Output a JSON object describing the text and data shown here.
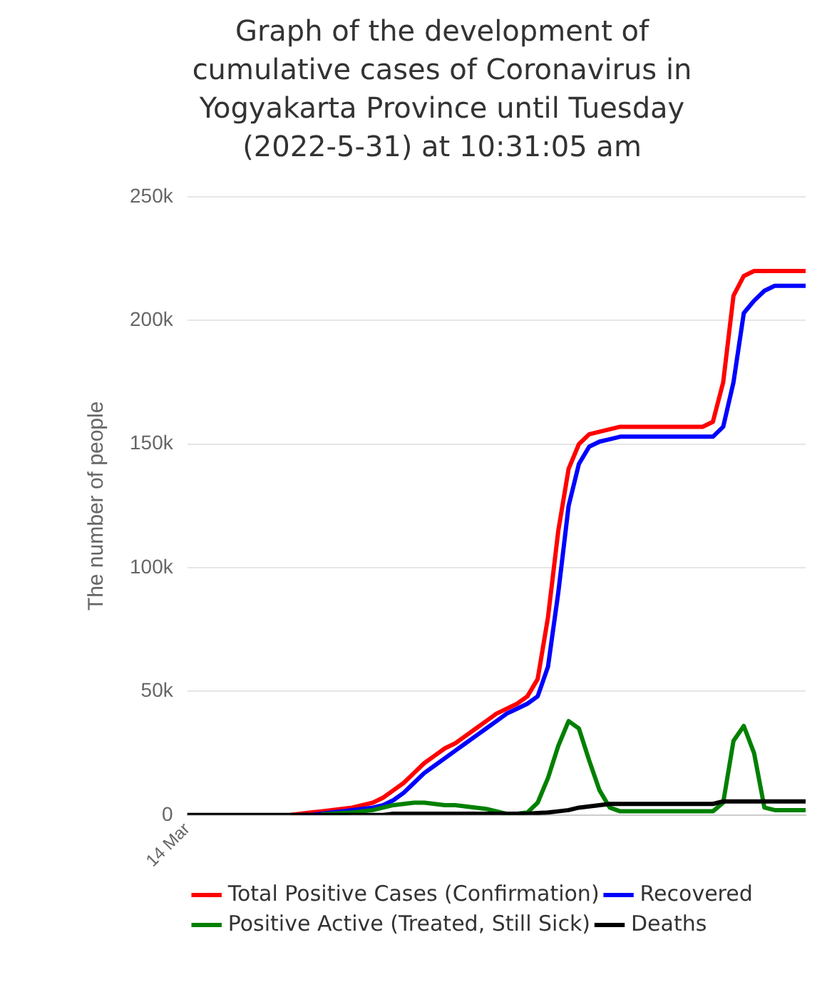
{
  "chart_data": {
    "type": "line",
    "title": "Graph of the development of cumulative cases of Coronavirus in Yogyakarta Province until Tuesday (2022-5-31) at 10:31:05 am",
    "ylabel": "The number of people",
    "categories": [
      "14 Mar",
      null,
      null,
      null,
      null,
      null,
      null,
      null,
      null,
      null,
      null,
      null,
      null,
      null,
      null,
      null,
      null,
      null,
      null,
      null,
      null,
      null,
      null,
      null,
      null,
      null,
      null,
      null,
      null,
      null,
      null,
      null,
      null,
      null,
      null,
      null,
      null,
      null,
      null,
      null,
      null,
      null,
      null,
      null,
      null,
      null,
      null,
      null,
      null,
      null,
      null,
      null,
      null,
      null,
      null,
      null,
      null,
      null,
      null,
      null,
      null
    ],
    "ylim": [
      0,
      250000
    ],
    "yticks": [
      {
        "value": 0,
        "label": "0"
      },
      {
        "value": 50000,
        "label": "50k"
      },
      {
        "value": 100000,
        "label": "100k"
      },
      {
        "value": 150000,
        "label": "150k"
      },
      {
        "value": 200000,
        "label": "200k"
      },
      {
        "value": 250000,
        "label": "250k"
      }
    ],
    "grid": "y",
    "legend": "bottom",
    "marker": "none",
    "series": [
      {
        "name": "Total Positive Cases (Confirmation)",
        "color": "#ff0000",
        "values": [
          null,
          null,
          null,
          null,
          null,
          null,
          null,
          null,
          null,
          null,
          0,
          500,
          1000,
          1500,
          2000,
          2500,
          3000,
          4000,
          5000,
          7000,
          10000,
          13000,
          17000,
          21000,
          24000,
          27000,
          29000,
          32000,
          35000,
          38000,
          41000,
          43000,
          45000,
          48000,
          55000,
          80000,
          115000,
          140000,
          150000,
          154000,
          155000,
          156000,
          157000,
          157000,
          157000,
          157000,
          157000,
          157000,
          157000,
          157000,
          157000,
          159000,
          175000,
          210000,
          218000,
          220000,
          220000,
          220000,
          220000,
          220000,
          220000
        ]
      },
      {
        "name": "Recovered",
        "color": "#0000ff",
        "values": [
          null,
          null,
          null,
          null,
          null,
          null,
          null,
          null,
          null,
          null,
          null,
          0,
          0,
          500,
          1000,
          1500,
          2000,
          2500,
          3000,
          4000,
          6000,
          9000,
          13000,
          17000,
          20000,
          23000,
          26000,
          29000,
          32000,
          35000,
          38000,
          41000,
          43000,
          45000,
          48000,
          60000,
          90000,
          125000,
          142000,
          149000,
          151000,
          152000,
          153000,
          153000,
          153000,
          153000,
          153000,
          153000,
          153000,
          153000,
          153000,
          153000,
          157000,
          175000,
          203000,
          208000,
          212000,
          214000,
          214000,
          214000,
          214000
        ]
      },
      {
        "name": "Positive Active (Treated, Still Sick)",
        "color": "#008000",
        "values": [
          null,
          null,
          null,
          null,
          null,
          null,
          null,
          null,
          null,
          null,
          null,
          null,
          null,
          300,
          500,
          800,
          1000,
          1500,
          2000,
          3000,
          4000,
          4500,
          5000,
          5000,
          4500,
          4000,
          4000,
          3500,
          3000,
          2500,
          1500,
          500,
          500,
          1000,
          5000,
          15000,
          28000,
          38000,
          35000,
          22000,
          10000,
          3000,
          1500,
          1500,
          1500,
          1500,
          1500,
          1500,
          1500,
          1500,
          1500,
          1500,
          5000,
          30000,
          36000,
          25000,
          3000,
          2000,
          2000,
          2000,
          2000
        ]
      },
      {
        "name": "Deaths",
        "color": "#000000",
        "values": [
          0,
          0,
          0,
          0,
          0,
          0,
          0,
          0,
          0,
          0,
          0,
          0,
          0,
          0,
          0,
          0,
          0,
          0,
          0,
          0,
          500,
          500,
          500,
          500,
          500,
          500,
          500,
          500,
          500,
          500,
          500,
          500,
          500,
          500,
          800,
          1000,
          1500,
          2000,
          3000,
          3500,
          4000,
          4500,
          4500,
          4500,
          4500,
          4500,
          4500,
          4500,
          4500,
          4500,
          4500,
          4500,
          5500,
          5500,
          5500,
          5500,
          5500,
          5500,
          5500,
          5500,
          5500
        ]
      }
    ]
  }
}
